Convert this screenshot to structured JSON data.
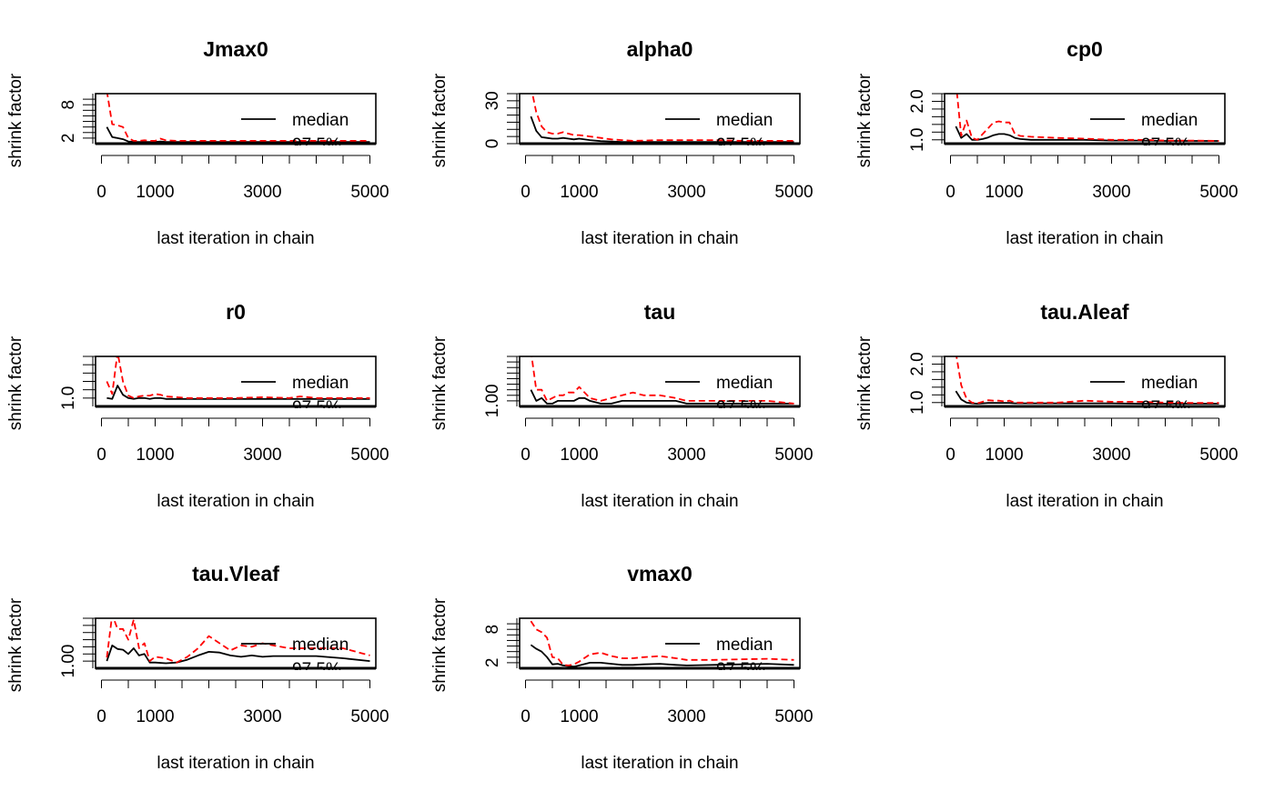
{
  "chart_data": {
    "type": "line",
    "xlabel": "last iteration in chain",
    "ylabel": "shrink factor",
    "legend": {
      "placement": "top-right",
      "entries": [
        "median",
        "97.5%"
      ]
    },
    "x_ticks": [
      "0",
      "1000",
      "3000",
      "5000"
    ],
    "series_colors": {
      "median": "#000000",
      "97.5%": "#ff0000"
    },
    "panels": [
      {
        "title": "Jmax0",
        "ylim": [
          1.0,
          10.0
        ],
        "y_tick_values": [
          2,
          3,
          4,
          5,
          6,
          7,
          8,
          9
        ],
        "y_tick_labels": [
          {
            "v": 2,
            "t": "2"
          },
          {
            "v": 8,
            "t": "8"
          }
        ],
        "x": [
          100,
          200,
          300,
          400,
          500,
          600,
          700,
          800,
          900,
          1000,
          1100,
          1200,
          1400,
          1600,
          1800,
          2000,
          2500,
          3000,
          3500,
          4000,
          4500,
          5000
        ],
        "series": [
          {
            "name": "median",
            "values": [
              4.0,
              2.2,
              2.0,
              1.8,
              1.4,
              1.3,
              1.3,
              1.3,
              1.3,
              1.3,
              1.4,
              1.3,
              1.3,
              1.3,
              1.3,
              1.3,
              1.3,
              1.3,
              1.3,
              1.3,
              1.3,
              1.3
            ]
          },
          {
            "name": "97.5%",
            "values": [
              10.5,
              4.5,
              4.3,
              4.0,
              2.0,
              1.5,
              1.5,
              1.6,
              1.5,
              1.5,
              1.9,
              1.6,
              1.5,
              1.5,
              1.5,
              1.5,
              1.5,
              1.5,
              1.5,
              1.5,
              1.5,
              1.5
            ]
          }
        ]
      },
      {
        "title": "alpha0",
        "ylim": [
          0,
          35
        ],
        "y_tick_values": [
          0,
          5,
          10,
          15,
          20,
          25,
          30,
          35
        ],
        "y_tick_labels": [
          {
            "v": 0,
            "t": "0"
          },
          {
            "v": 30,
            "t": "30"
          }
        ],
        "x": [
          100,
          200,
          300,
          400,
          500,
          600,
          700,
          800,
          900,
          1000,
          1200,
          1400,
          1600,
          1800,
          2000,
          2500,
          3000,
          3500,
          4000,
          4500,
          5000
        ],
        "series": [
          {
            "name": "median",
            "values": [
              19,
              9,
              4.5,
              4,
              3.5,
              3.5,
              4,
              3.5,
              3,
              3.5,
              2.5,
              1.8,
              1.5,
              1.2,
              1.2,
              1.2,
              1.2,
              1.2,
              1.2,
              1.2,
              1.2
            ]
          },
          {
            "name": "97.5%",
            "values": [
              40,
              22,
              12,
              8,
              7,
              7,
              8,
              7,
              6,
              6,
              5,
              4,
              3,
              2.5,
              2,
              2.5,
              2.5,
              2.5,
              2,
              2,
              2
            ]
          }
        ]
      },
      {
        "title": "cp0",
        "ylim": [
          0.9,
          2.2
        ],
        "y_tick_values": [
          1.0,
          1.2,
          1.4,
          1.6,
          1.8,
          2.0,
          2.2
        ],
        "y_tick_labels": [
          {
            "v": 1.0,
            "t": "1.0"
          },
          {
            "v": 2.0,
            "t": "2.0"
          }
        ],
        "x": [
          100,
          200,
          300,
          400,
          500,
          600,
          700,
          800,
          900,
          1000,
          1100,
          1200,
          1300,
          1500,
          2000,
          2500,
          3000,
          3500,
          4000,
          4500,
          5000
        ],
        "series": [
          {
            "name": "median",
            "values": [
              1.35,
              1.05,
              1.15,
              1.0,
              1.0,
              1.02,
              1.06,
              1.12,
              1.15,
              1.15,
              1.12,
              1.05,
              1.02,
              1.0,
              1.0,
              1.0,
              0.98,
              0.98,
              0.97,
              0.97,
              0.97
            ]
          },
          {
            "name": "97.5%",
            "values": [
              2.5,
              1.1,
              1.5,
              1.05,
              1.0,
              1.15,
              1.3,
              1.45,
              1.48,
              1.45,
              1.45,
              1.15,
              1.1,
              1.08,
              1.05,
              1.03,
              1.0,
              1.0,
              0.98,
              0.98,
              0.97
            ]
          }
        ]
      },
      {
        "title": "r0",
        "ylim": [
          0.99,
          1.05
        ],
        "y_tick_values": [
          1.0,
          1.01,
          1.02,
          1.03,
          1.04,
          1.05
        ],
        "y_tick_labels": [
          {
            "v": 1.0,
            "t": "1.0"
          }
        ],
        "x": [
          100,
          200,
          300,
          400,
          500,
          600,
          700,
          800,
          900,
          1000,
          1100,
          1200,
          1400,
          1600,
          1800,
          2000,
          2500,
          3000,
          3500,
          3700,
          4000,
          4500,
          5000
        ],
        "series": [
          {
            "name": "median",
            "values": [
              1.0,
              0.999,
              1.015,
              1.004,
              1.0,
              0.999,
              1.0,
              1.0,
              0.999,
              1.0,
              1.0,
              0.999,
              0.999,
              0.999,
              0.999,
              0.999,
              0.999,
              0.999,
              0.999,
              0.999,
              0.999,
              0.999,
              0.999
            ]
          },
          {
            "name": "97.5%",
            "values": [
              1.02,
              1.005,
              1.055,
              1.02,
              1.003,
              1.0,
              1.002,
              1.003,
              1.003,
              1.005,
              1.004,
              1.002,
              1.001,
              1.0,
              1.0,
              1.0,
              1.0,
              1.001,
              1.0,
              1.002,
              1.0,
              1.0,
              1.0
            ]
          }
        ]
      },
      {
        "title": "tau",
        "ylim": [
          0.998,
          1.016
        ],
        "y_tick_values": [
          1.0,
          1.002,
          1.004,
          1.006,
          1.008,
          1.01,
          1.012,
          1.014,
          1.016
        ],
        "y_tick_labels": [
          {
            "v": 1.0,
            "t": "1.00"
          }
        ],
        "x": [
          100,
          200,
          300,
          400,
          500,
          600,
          700,
          800,
          900,
          1000,
          1100,
          1200,
          1400,
          1600,
          1800,
          2000,
          2200,
          2500,
          2800,
          3000,
          3500,
          4000,
          4500,
          5000
        ],
        "series": [
          {
            "name": "median",
            "values": [
              1.004,
              1.0,
              1.001,
              0.999,
              0.999,
              1.0,
              1.0,
              1.0,
              1.0,
              1.001,
              1.001,
              1.0,
              0.999,
              0.999,
              1.0,
              1.0,
              1.0,
              1.0,
              1.0,
              0.999,
              0.999,
              0.999,
              0.999,
              0.999
            ]
          },
          {
            "name": "97.5%",
            "values": [
              1.018,
              1.004,
              1.004,
              1.0,
              1.001,
              1.002,
              1.002,
              1.003,
              1.003,
              1.005,
              1.003,
              1.001,
              1.0,
              1.001,
              1.002,
              1.003,
              1.002,
              1.002,
              1.001,
              1.0,
              1.0,
              1.0,
              1.0,
              0.999
            ]
          }
        ]
      },
      {
        "title": "tau.Aleaf",
        "ylim": [
          0.9,
          2.2
        ],
        "y_tick_values": [
          1.0,
          1.2,
          1.4,
          1.6,
          1.8,
          2.0,
          2.2
        ],
        "y_tick_labels": [
          {
            "v": 1.0,
            "t": "1.0"
          },
          {
            "v": 2.0,
            "t": "2.0"
          }
        ],
        "x": [
          100,
          200,
          300,
          400,
          500,
          600,
          700,
          800,
          900,
          1000,
          1100,
          1200,
          1500,
          2000,
          2500,
          3000,
          3500,
          4000,
          4500,
          5000
        ],
        "series": [
          {
            "name": "median",
            "values": [
              1.3,
              1.08,
              1.0,
              0.98,
              0.97,
              0.98,
              0.99,
              0.99,
              0.99,
              0.99,
              0.99,
              0.98,
              0.98,
              0.98,
              0.98,
              0.98,
              0.97,
              0.97,
              0.97,
              0.97
            ]
          },
          {
            "name": "97.5%",
            "values": [
              2.3,
              1.45,
              1.1,
              1.0,
              0.98,
              1.02,
              1.06,
              1.05,
              1.05,
              1.03,
              1.05,
              1.0,
              1.0,
              1.0,
              1.05,
              1.02,
              1.02,
              1.0,
              0.99,
              0.99
            ]
          }
        ]
      },
      {
        "title": "tau.Vleaf",
        "ylim": [
          0.999,
          1.006
        ],
        "y_tick_values": [
          1.0,
          1.001,
          1.002,
          1.003,
          1.004,
          1.005,
          1.006
        ],
        "y_tick_labels": [
          {
            "v": 1.0,
            "t": "1.00"
          }
        ],
        "x": [
          100,
          200,
          300,
          400,
          500,
          600,
          700,
          800,
          900,
          1000,
          1200,
          1400,
          1600,
          1800,
          2000,
          2200,
          2400,
          2600,
          2800,
          3000,
          3200,
          3500,
          4000,
          4500,
          5000
        ],
        "series": [
          {
            "name": "median",
            "values": [
              1.0,
              1.0022,
              1.0017,
              1.0016,
              1.001,
              1.0018,
              1.0008,
              1.001,
              0.9998,
              0.9998,
              0.9997,
              0.9998,
              1.0002,
              1.0008,
              1.0013,
              1.0012,
              1.0008,
              1.0006,
              1.0008,
              1.0006,
              1.0007,
              1.0007,
              1.0007,
              1.0004,
              1.0
            ]
          },
          {
            "name": "97.5%",
            "values": [
              1.0005,
              1.0065,
              1.0045,
              1.0045,
              1.003,
              1.0058,
              1.0018,
              1.0025,
              1.0,
              1.0006,
              1.0004,
              0.9998,
              1.0006,
              1.0018,
              1.0035,
              1.0025,
              1.0015,
              1.0022,
              1.002,
              1.0025,
              1.0022,
              1.0018,
              1.0018,
              1.0018,
              1.0008
            ]
          }
        ]
      },
      {
        "title": "vmax0",
        "ylim": [
          1.0,
          10.0
        ],
        "y_tick_values": [
          2,
          3,
          4,
          5,
          6,
          7,
          8,
          9
        ],
        "y_tick_labels": [
          {
            "v": 2,
            "t": "2"
          },
          {
            "v": 8,
            "t": "8"
          }
        ],
        "x": [
          100,
          200,
          300,
          400,
          500,
          600,
          700,
          800,
          900,
          1000,
          1200,
          1400,
          1600,
          1800,
          2000,
          2200,
          2500,
          2800,
          3000,
          3500,
          4000,
          4500,
          5000
        ],
        "series": [
          {
            "name": "median",
            "values": [
              5.2,
              4.5,
              4.0,
              3.0,
              1.7,
              1.8,
              1.5,
              1.4,
              1.3,
              1.5,
              2.0,
              2.0,
              1.8,
              1.6,
              1.6,
              1.7,
              1.8,
              1.6,
              1.5,
              1.6,
              1.7,
              1.8,
              1.6
            ]
          },
          {
            "name": "97.5%",
            "values": [
              9.5,
              8.0,
              7.5,
              6.5,
              3.0,
              2.8,
              1.6,
              1.5,
              1.7,
              2.2,
              3.5,
              3.8,
              3.2,
              2.8,
              2.8,
              3.0,
              3.2,
              2.8,
              2.5,
              2.5,
              2.6,
              2.7,
              2.5
            ]
          }
        ]
      }
    ]
  }
}
